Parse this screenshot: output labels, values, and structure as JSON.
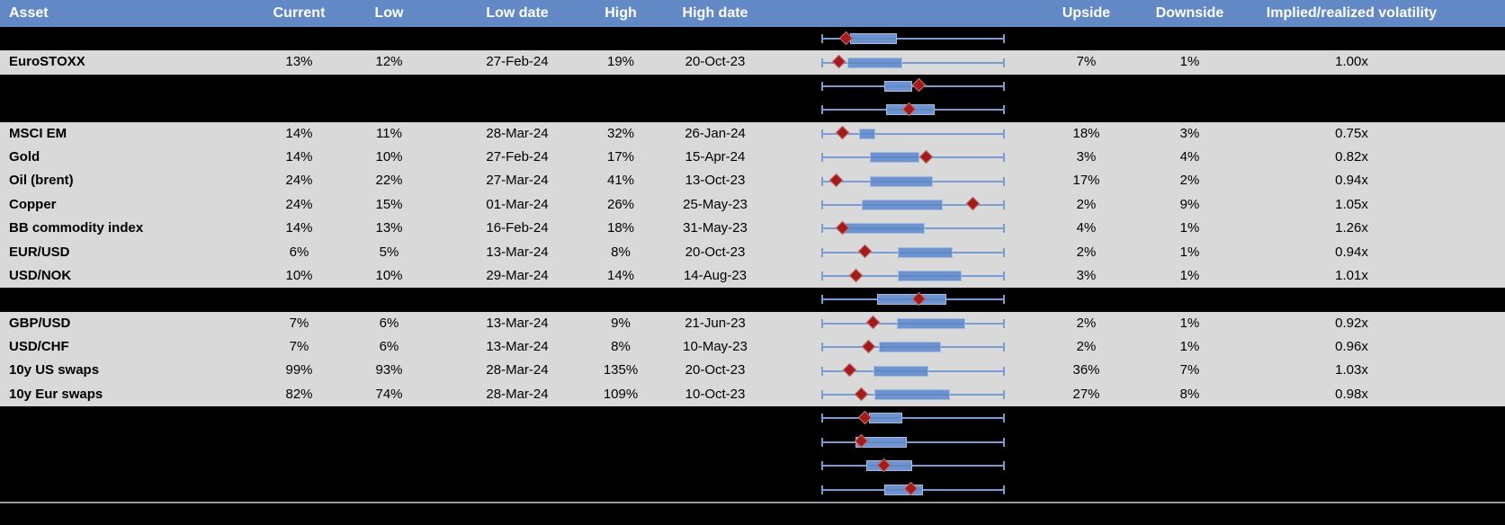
{
  "colors": {
    "header_bg": "#6289c6",
    "header_text": "#ffffff",
    "row_bg": "#d9d9d9",
    "spacer_bg": "#000000",
    "text": "#000000",
    "whisker": "#7b9cd2",
    "box_fill": "#6d94d0",
    "box_border": "#a6bcdf",
    "box_median": "#5f88c4",
    "diamond_fill": "#a31c1c",
    "diamond_border": "#c57373",
    "separator": "#999999"
  },
  "header": {
    "columns": [
      {
        "label": "Asset"
      },
      {
        "label": "Current"
      },
      {
        "label": "Low"
      },
      {
        "label": "Low date"
      },
      {
        "label": "High"
      },
      {
        "label": "High date"
      },
      {
        "label": ""
      },
      {
        "label": "Upside"
      },
      {
        "label": "Downside"
      },
      {
        "label": "Implied/realized volatility"
      },
      {
        "label": ""
      }
    ]
  },
  "rows": [
    {
      "type": "spacer",
      "box": {
        "start": 0.157,
        "end": 0.412,
        "marker": 0.136
      }
    },
    {
      "type": "data",
      "asset": "EuroSTOXX",
      "current": "13%",
      "low": "12%",
      "low_date": "27-Feb-24",
      "high": "19%",
      "high_date": "20-Oct-23",
      "upside": "7%",
      "downside": "1%",
      "impl_vol": "1.00x",
      "box": {
        "start": 0.141,
        "end": 0.443,
        "marker": 0.097
      }
    },
    {
      "type": "spacer",
      "box": {
        "start": 0.345,
        "end": 0.497,
        "marker": 0.533
      }
    },
    {
      "type": "spacer",
      "box": {
        "start": 0.353,
        "end": 0.619,
        "marker": 0.48
      }
    },
    {
      "type": "data",
      "asset": "MSCI EM",
      "current": "14%",
      "low": "11%",
      "low_date": "28-Mar-24",
      "high": "32%",
      "high_date": "26-Jan-24",
      "upside": "18%",
      "downside": "3%",
      "impl_vol": "0.75x",
      "box": {
        "start": 0.206,
        "end": 0.293,
        "marker": 0.119
      }
    },
    {
      "type": "data",
      "asset": "Gold",
      "current": "14%",
      "low": "10%",
      "low_date": "27-Feb-24",
      "high": "17%",
      "high_date": "15-Apr-24",
      "upside": "3%",
      "downside": "4%",
      "impl_vol": "0.82x",
      "box": {
        "start": 0.263,
        "end": 0.536,
        "marker": 0.575
      }
    },
    {
      "type": "data",
      "asset": "Oil (brent)",
      "current": "24%",
      "low": "22%",
      "low_date": "27-Mar-24",
      "high": "41%",
      "high_date": "13-Oct-23",
      "upside": "17%",
      "downside": "2%",
      "impl_vol": "0.94x",
      "box": {
        "start": 0.263,
        "end": 0.606,
        "marker": 0.085
      }
    },
    {
      "type": "data",
      "asset": "Copper",
      "current": "24%",
      "low": "15%",
      "low_date": "01-Mar-24",
      "high": "26%",
      "high_date": "25-May-23",
      "upside": "2%",
      "downside": "9%",
      "impl_vol": "1.05x",
      "box": {
        "start": 0.222,
        "end": 0.663,
        "marker": 0.827
      }
    },
    {
      "type": "data",
      "asset": "BB commodity index",
      "current": "14%",
      "low": "13%",
      "low_date": "16-Feb-24",
      "high": "18%",
      "high_date": "31-May-23",
      "upside": "4%",
      "downside": "1%",
      "impl_vol": "1.26x",
      "box": {
        "start": 0.124,
        "end": 0.562,
        "marker": 0.119
      }
    },
    {
      "type": "data",
      "asset": "EUR/USD",
      "current": "6%",
      "low": "5%",
      "low_date": "13-Mar-24",
      "high": "8%",
      "high_date": "20-Oct-23",
      "upside": "2%",
      "downside": "1%",
      "impl_vol": "0.94x",
      "box": {
        "start": 0.415,
        "end": 0.716,
        "marker": 0.239
      }
    },
    {
      "type": "data",
      "asset": "USD/NOK",
      "current": "10%",
      "low": "10%",
      "low_date": "29-Mar-24",
      "high": "14%",
      "high_date": "14-Aug-23",
      "upside": "3%",
      "downside": "1%",
      "impl_vol": "1.01x",
      "box": {
        "start": 0.415,
        "end": 0.765,
        "marker": 0.19
      }
    },
    {
      "type": "spacer",
      "box": {
        "start": 0.304,
        "end": 0.68,
        "marker": 0.533
      }
    },
    {
      "type": "data",
      "asset": "GBP/USD",
      "current": "7%",
      "low": "6%",
      "low_date": "13-Mar-24",
      "high": "9%",
      "high_date": "21-Jun-23",
      "upside": "2%",
      "downside": "1%",
      "impl_vol": "0.92x",
      "box": {
        "start": 0.41,
        "end": 0.786,
        "marker": 0.284
      }
    },
    {
      "type": "data",
      "asset": "USD/CHF",
      "current": "7%",
      "low": "6%",
      "low_date": "13-Mar-24",
      "high": "8%",
      "high_date": "10-May-23",
      "upside": "2%",
      "downside": "1%",
      "impl_vol": "0.96x",
      "box": {
        "start": 0.312,
        "end": 0.652,
        "marker": 0.26
      }
    },
    {
      "type": "data",
      "asset": "10y US swaps",
      "current": "99%",
      "low": "93%",
      "low_date": "28-Mar-24",
      "high": "135%",
      "high_date": "20-Oct-23",
      "upside": "36%",
      "downside": "7%",
      "impl_vol": "1.03x",
      "box": {
        "start": 0.284,
        "end": 0.582,
        "marker": 0.157
      }
    },
    {
      "type": "data",
      "asset": "10y Eur swaps",
      "current": "82%",
      "low": "74%",
      "low_date": "28-Mar-24",
      "high": "109%",
      "high_date": "10-Oct-23",
      "upside": "27%",
      "downside": "8%",
      "impl_vol": "0.98x",
      "box": {
        "start": 0.289,
        "end": 0.701,
        "marker": 0.221
      }
    },
    {
      "type": "spacer",
      "box": {
        "start": 0.26,
        "end": 0.44,
        "marker": 0.239
      }
    },
    {
      "type": "spacer",
      "box": {
        "start": 0.185,
        "end": 0.464,
        "marker": 0.222
      }
    },
    {
      "type": "spacer",
      "box": {
        "start": 0.244,
        "end": 0.497,
        "marker": 0.345
      }
    },
    {
      "type": "spacer",
      "box": {
        "start": 0.345,
        "end": 0.554,
        "marker": 0.492
      }
    }
  ],
  "chart_data": {
    "type": "boxplot",
    "orientation": "horizontal",
    "note": "One box-whisker glyph per table row; no numeric axis is shown in the image. box/marker positions are fractions of the common whisker span (0 = left whisker cap, 1 = right whisker cap). Red diamond = current level marker.",
    "series": [
      {
        "label": "",
        "box": [
          0.157,
          0.412
        ],
        "marker": 0.136
      },
      {
        "label": "EuroSTOXX",
        "box": [
          0.141,
          0.443
        ],
        "marker": 0.097
      },
      {
        "label": "",
        "box": [
          0.345,
          0.497
        ],
        "marker": 0.533
      },
      {
        "label": "",
        "box": [
          0.353,
          0.619
        ],
        "marker": 0.48
      },
      {
        "label": "MSCI EM",
        "box": [
          0.206,
          0.293
        ],
        "marker": 0.119
      },
      {
        "label": "Gold",
        "box": [
          0.263,
          0.536
        ],
        "marker": 0.575
      },
      {
        "label": "Oil (brent)",
        "box": [
          0.263,
          0.606
        ],
        "marker": 0.085
      },
      {
        "label": "Copper",
        "box": [
          0.222,
          0.663
        ],
        "marker": 0.827
      },
      {
        "label": "BB commodity index",
        "box": [
          0.124,
          0.562
        ],
        "marker": 0.119
      },
      {
        "label": "EUR/USD",
        "box": [
          0.415,
          0.716
        ],
        "marker": 0.239
      },
      {
        "label": "USD/NOK",
        "box": [
          0.415,
          0.765
        ],
        "marker": 0.19
      },
      {
        "label": "",
        "box": [
          0.304,
          0.68
        ],
        "marker": 0.533
      },
      {
        "label": "GBP/USD",
        "box": [
          0.41,
          0.786
        ],
        "marker": 0.284
      },
      {
        "label": "USD/CHF",
        "box": [
          0.312,
          0.652
        ],
        "marker": 0.26
      },
      {
        "label": "10y US swaps",
        "box": [
          0.284,
          0.582
        ],
        "marker": 0.157
      },
      {
        "label": "10y Eur swaps",
        "box": [
          0.289,
          0.701
        ],
        "marker": 0.221
      },
      {
        "label": "",
        "box": [
          0.26,
          0.44
        ],
        "marker": 0.239
      },
      {
        "label": "",
        "box": [
          0.185,
          0.464
        ],
        "marker": 0.222
      },
      {
        "label": "",
        "box": [
          0.244,
          0.497
        ],
        "marker": 0.345
      },
      {
        "label": "",
        "box": [
          0.345,
          0.554
        ],
        "marker": 0.492
      }
    ]
  }
}
